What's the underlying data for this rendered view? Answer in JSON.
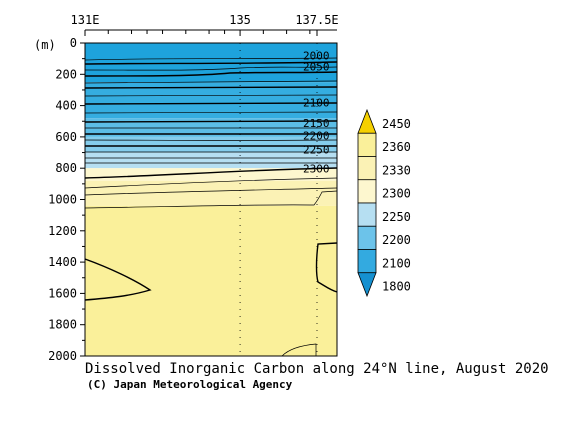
{
  "chart_data": {
    "type": "heatmap",
    "title": "Dissolved Inorganic Carbon along 24°N line, August 2020",
    "credit": "(C) Japan Meteorological Agency",
    "ylabel": "(m)",
    "xlim": [
      131,
      137.5
    ],
    "ylim": [
      0,
      2000
    ],
    "x_ticks": [
      {
        "value": 131,
        "label": "131E"
      },
      {
        "value": 135,
        "label": "135"
      },
      {
        "value": 137.5,
        "label": "137.5E"
      }
    ],
    "y_ticks": [
      0,
      200,
      400,
      600,
      800,
      1000,
      1200,
      1400,
      1600,
      1800,
      2000
    ],
    "contour_labels": [
      {
        "value": "2000",
        "x": 137.5,
        "depth": 100
      },
      {
        "value": "2050",
        "x": 137.5,
        "depth": 170
      },
      {
        "value": "2100",
        "x": 137.5,
        "depth": 400
      },
      {
        "value": "2150",
        "x": 137.5,
        "depth": 530
      },
      {
        "value": "2200",
        "x": 137.5,
        "depth": 610
      },
      {
        "value": "2250",
        "x": 137.5,
        "depth": 700
      },
      {
        "value": "2300",
        "x": 137.5,
        "depth": 820
      }
    ],
    "layers": [
      {
        "depth_top": 0,
        "depth_bottom": 250,
        "color": "#1ea3dc"
      },
      {
        "depth_top": 250,
        "depth_bottom": 480,
        "color": "#35ade0"
      },
      {
        "depth_top": 480,
        "depth_bottom": 600,
        "color": "#5cbde6"
      },
      {
        "depth_top": 600,
        "depth_bottom": 700,
        "color": "#85cdec"
      },
      {
        "depth_top": 700,
        "depth_bottom": 800,
        "color": "#b6dff2"
      },
      {
        "depth_top": 800,
        "depth_bottom": 880,
        "color": "#fdf7cf"
      },
      {
        "depth_top": 880,
        "depth_bottom": 1040,
        "color": "#fbf2b5"
      },
      {
        "depth_top": 1040,
        "depth_bottom": 2000,
        "color": "#faf09a"
      }
    ],
    "legend": {
      "levels": [
        "2450",
        "2360",
        "2330",
        "2300",
        "2250",
        "2200",
        "2100",
        "1800"
      ],
      "colors": [
        "#f5d000",
        "#faf09a",
        "#fbf2b5",
        "#fdf7cf",
        "#b6dff2",
        "#6cc3ea",
        "#33aae0",
        "#1590d0"
      ]
    }
  }
}
